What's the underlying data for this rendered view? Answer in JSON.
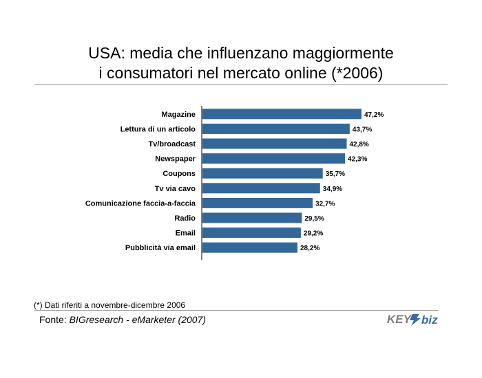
{
  "title_line1": "USA: media che influenzano maggiormente",
  "title_line2": "i consumatori nel mercato online (*2006)",
  "footnote": "(*) Dati riferiti a novembre-dicembre 2006",
  "source_label": "Fonte:",
  "source_text": "BIGresearch - eMarketer (2007)",
  "logo_text_1": "KEY",
  "logo_text_2": "biz",
  "colors": {
    "bar": "#336699",
    "logo_gray": "#7f7f7f",
    "logo_blue": "#3b6aa0"
  },
  "chart_data": {
    "type": "bar",
    "orientation": "horizontal",
    "categories": [
      "Magazine",
      "Lettura di un articolo",
      "Tv/broadcast",
      "Newspaper",
      "Coupons",
      "Tv via cavo",
      "Comunicazione faccia-a-faccia",
      "Radio",
      "Email",
      "Pubblicità via email"
    ],
    "values": [
      47.2,
      43.7,
      42.8,
      42.3,
      35.7,
      34.9,
      32.7,
      29.5,
      29.2,
      28.2
    ],
    "value_labels": [
      "47,2%",
      "43,7%",
      "42,8%",
      "42,3%",
      "35,7%",
      "34,9%",
      "32,7%",
      "29,5%",
      "29,2%",
      "28,2%"
    ],
    "xlim": [
      0,
      50
    ],
    "grid": false
  }
}
